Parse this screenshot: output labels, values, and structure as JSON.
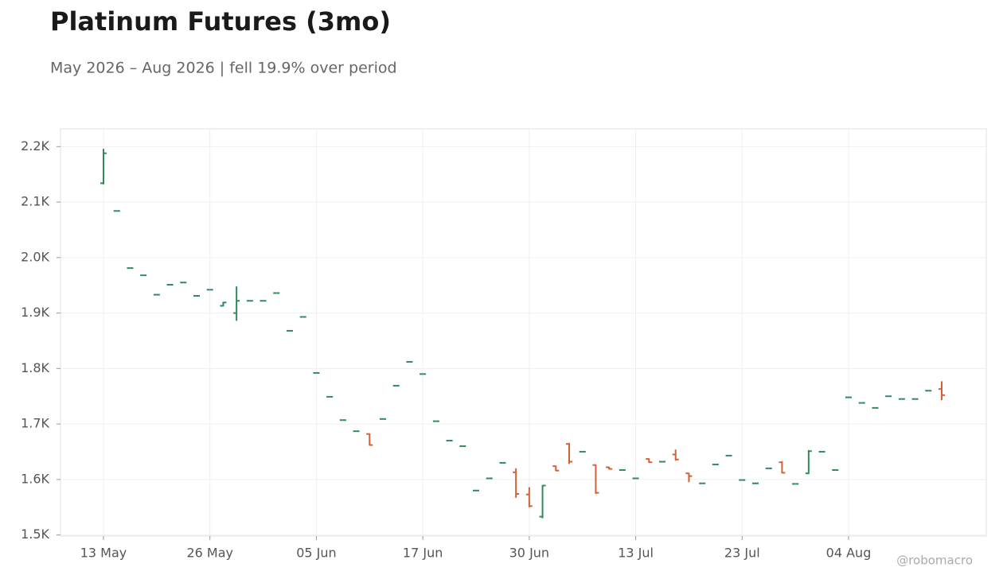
{
  "chart_data": {
    "type": "ohlc",
    "title": "Platinum Futures (3mo)",
    "subtitle": "May 2026 – Aug 2026 | fell 19.9% over period",
    "watermark": "@robomacro",
    "up_color": "#2e8b57",
    "down_color": "#d4603a",
    "grid": true,
    "categories": [
      "13 May",
      null,
      null,
      null,
      null,
      null,
      null,
      null,
      "26 May",
      null,
      null,
      null,
      null,
      null,
      null,
      null,
      "05 Jun",
      null,
      null,
      null,
      null,
      null,
      null,
      null,
      "17 Jun",
      null,
      null,
      null,
      null,
      null,
      null,
      null,
      "30 Jun",
      null,
      null,
      null,
      null,
      null,
      null,
      null,
      "13 Jul",
      null,
      null,
      null,
      null,
      null,
      null,
      null,
      "23 Jul",
      null,
      null,
      null,
      null,
      null,
      null,
      null,
      "04 Aug",
      null,
      null,
      null,
      null,
      null,
      null,
      null
    ],
    "open": [
      2134,
      2084,
      1981,
      1968,
      1933,
      1951,
      1955,
      1931,
      1942,
      1913,
      1900,
      1922,
      1922,
      1936,
      1868,
      1893,
      1792,
      1749,
      1707,
      1687,
      1682,
      1709,
      1769,
      1812,
      1790,
      1705,
      1670,
      1660,
      1580,
      1602,
      1630,
      1613,
      1573,
      1533,
      1624,
      1664,
      1650,
      1626,
      1622,
      1617,
      1602,
      1637,
      1632,
      1645,
      1611,
      1593,
      1627,
      1643,
      1599,
      1593,
      1620,
      1631,
      1592,
      1611,
      1650,
      1617,
      1748,
      1738,
      1729,
      1750,
      1745,
      1745,
      1760,
      1763
    ],
    "high": [
      2196,
      2084,
      1981,
      1968,
      1933,
      1951,
      1955,
      1931,
      1942,
      1920,
      1948,
      1922,
      1922,
      1936,
      1868,
      1893,
      1792,
      1749,
      1707,
      1687,
      1683,
      1709,
      1769,
      1812,
      1790,
      1705,
      1670,
      1660,
      1580,
      1602,
      1630,
      1620,
      1586,
      1590,
      1625,
      1666,
      1650,
      1627,
      1623,
      1617,
      1602,
      1638,
      1632,
      1654,
      1612,
      1593,
      1627,
      1643,
      1599,
      1593,
      1620,
      1633,
      1592,
      1653,
      1650,
      1617,
      1748,
      1738,
      1729,
      1750,
      1745,
      1745,
      1760,
      1777
    ],
    "low": [
      2132,
      2084,
      1981,
      1968,
      1933,
      1951,
      1955,
      1931,
      1942,
      1912,
      1886,
      1922,
      1922,
      1936,
      1868,
      1893,
      1792,
      1749,
      1707,
      1687,
      1661,
      1709,
      1769,
      1812,
      1790,
      1705,
      1670,
      1660,
      1580,
      1602,
      1630,
      1567,
      1550,
      1530,
      1615,
      1628,
      1650,
      1574,
      1618,
      1617,
      1602,
      1630,
      1632,
      1634,
      1595,
      1593,
      1627,
      1643,
      1599,
      1593,
      1620,
      1611,
      1592,
      1610,
      1650,
      1617,
      1748,
      1738,
      1729,
      1750,
      1745,
      1745,
      1760,
      1743
    ],
    "close": [
      2188,
      2084,
      1981,
      1968,
      1933,
      1951,
      1955,
      1931,
      1942,
      1919,
      1922,
      1922,
      1922,
      1936,
      1868,
      1893,
      1792,
      1749,
      1707,
      1687,
      1662,
      1709,
      1769,
      1812,
      1790,
      1705,
      1670,
      1660,
      1580,
      1602,
      1630,
      1574,
      1552,
      1589,
      1616,
      1632,
      1650,
      1576,
      1619,
      1617,
      1602,
      1631,
      1632,
      1636,
      1606,
      1593,
      1627,
      1643,
      1599,
      1593,
      1620,
      1612,
      1592,
      1651,
      1650,
      1617,
      1748,
      1738,
      1729,
      1750,
      1745,
      1745,
      1760,
      1752
    ],
    "ylim": [
      1498,
      2232
    ],
    "yticks": [
      {
        "value": 1500,
        "label": "1.5K"
      },
      {
        "value": 1600,
        "label": "1.6K"
      },
      {
        "value": 1700,
        "label": "1.7K"
      },
      {
        "value": 1800,
        "label": "1.8K"
      },
      {
        "value": 1900,
        "label": "1.9K"
      },
      {
        "value": 2000,
        "label": "2.0K"
      },
      {
        "value": 2100,
        "label": "2.1K"
      },
      {
        "value": 2200,
        "label": "2.2K"
      }
    ]
  }
}
